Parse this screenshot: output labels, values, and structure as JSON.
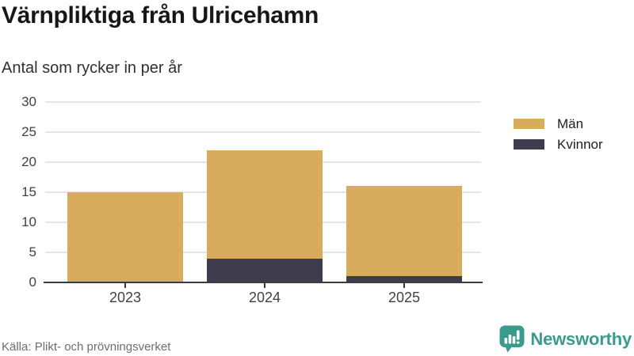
{
  "header": {
    "title": "Värnpliktiga från Ulricehamn",
    "subtitle": "Antal som rycker in per år"
  },
  "legend": {
    "items": [
      {
        "label": "Män",
        "color": "#d9ab5c"
      },
      {
        "label": "Kvinnor",
        "color": "#3f3d4d"
      }
    ]
  },
  "footer": {
    "source": "Källa: Plikt- och prövningsverket",
    "brand_name": "Newsworthy",
    "brand_color": "#399a8d"
  },
  "chart_data": {
    "type": "bar",
    "stacked": true,
    "title": "Värnpliktiga från Ulricehamn",
    "subtitle": "Antal som rycker in per år",
    "categories": [
      "2023",
      "2024",
      "2025"
    ],
    "series": [
      {
        "name": "Män",
        "color": "#d9ab5c",
        "values": [
          15,
          18,
          15
        ]
      },
      {
        "name": "Kvinnor",
        "color": "#3f3d4d",
        "values": [
          0,
          4,
          1
        ]
      }
    ],
    "stack_order_bottom_to_top": [
      "Kvinnor",
      "Män"
    ],
    "totals": [
      15,
      22,
      16
    ],
    "xlabel": "",
    "ylabel": "",
    "ylim": [
      0,
      30
    ],
    "yticks": [
      0,
      5,
      10,
      15,
      20,
      25,
      30
    ],
    "grid": "horizontal",
    "legend_position": "top-right"
  }
}
